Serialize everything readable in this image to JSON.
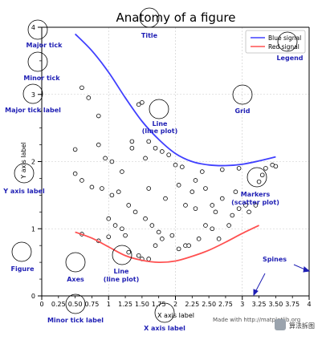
{
  "chart_data": {
    "type": "line",
    "title": "Anatomy of a figure",
    "xlabel": "X axis label",
    "ylabel": "Y axis label",
    "xlim": [
      0,
      4
    ],
    "ylim": [
      0,
      4
    ],
    "grid": true,
    "legend_position": "top-right",
    "x_major_ticks": [
      0,
      1,
      2,
      3,
      4
    ],
    "x_minor_ticks": [
      "0.25",
      "0.50",
      "0.75",
      "1.25",
      "1.50",
      "1.75",
      "2.25",
      "2.50",
      "2.75",
      "3.25",
      "3.50",
      "3.75"
    ],
    "y_major_ticks": [
      0,
      1,
      2,
      3,
      4
    ],
    "series": [
      {
        "name": "Blue signal",
        "color": "#4040ff",
        "x": [
          0.5,
          0.75,
          1.0,
          1.25,
          1.5,
          1.75,
          2.0,
          2.25,
          2.5,
          2.75,
          3.0,
          3.25,
          3.5
        ],
        "y": [
          3.9,
          3.65,
          3.33,
          2.95,
          2.6,
          2.33,
          2.12,
          2.0,
          1.95,
          1.94,
          1.96,
          2.01,
          2.07
        ]
      },
      {
        "name": "Red signal",
        "color": "#ff5050",
        "x": [
          0.5,
          0.75,
          1.0,
          1.25,
          1.5,
          1.75,
          2.0,
          2.25,
          2.5,
          2.75,
          3.0,
          3.25
        ],
        "y": [
          0.95,
          0.86,
          0.73,
          0.6,
          0.53,
          0.5,
          0.52,
          0.59,
          0.68,
          0.8,
          0.93,
          1.05
        ]
      }
    ],
    "scatter": {
      "label": "Markers (scatter plot)",
      "points": [
        [
          0.6,
          3.1
        ],
        [
          0.7,
          2.95
        ],
        [
          0.85,
          2.68
        ],
        [
          0.85,
          2.25
        ],
        [
          0.5,
          2.18
        ],
        [
          0.95,
          2.05
        ],
        [
          0.5,
          1.82
        ],
        [
          0.6,
          1.72
        ],
        [
          0.9,
          1.6
        ],
        [
          1.05,
          1.5
        ],
        [
          0.75,
          1.62
        ],
        [
          1.2,
          1.85
        ],
        [
          1.35,
          2.3
        ],
        [
          1.45,
          2.85
        ],
        [
          1.5,
          2.88
        ],
        [
          1.6,
          2.3
        ],
        [
          1.6,
          1.6
        ],
        [
          1.7,
          2.2
        ],
        [
          1.8,
          2.15
        ],
        [
          1.9,
          2.1
        ],
        [
          2.0,
          1.95
        ],
        [
          2.1,
          1.92
        ],
        [
          2.05,
          1.65
        ],
        [
          2.15,
          1.35
        ],
        [
          2.25,
          1.55
        ],
        [
          2.3,
          1.72
        ],
        [
          2.4,
          1.85
        ],
        [
          2.45,
          1.6
        ],
        [
          2.55,
          1.35
        ],
        [
          2.6,
          1.25
        ],
        [
          2.7,
          1.45
        ],
        [
          2.8,
          1.05
        ],
        [
          2.85,
          1.2
        ],
        [
          2.9,
          1.55
        ],
        [
          2.95,
          1.3
        ],
        [
          3.05,
          1.35
        ],
        [
          3.1,
          1.25
        ],
        [
          3.2,
          1.35
        ],
        [
          3.25,
          1.7
        ],
        [
          3.35,
          1.9
        ],
        [
          3.45,
          1.95
        ],
        [
          3.5,
          1.93
        ],
        [
          3.3,
          1.8
        ],
        [
          1.0,
          1.15
        ],
        [
          1.1,
          1.05
        ],
        [
          1.25,
          0.9
        ],
        [
          1.3,
          0.65
        ],
        [
          1.45,
          0.6
        ],
        [
          1.5,
          0.55
        ],
        [
          1.6,
          0.55
        ],
        [
          1.7,
          0.75
        ],
        [
          1.8,
          0.85
        ],
        [
          1.95,
          0.9
        ],
        [
          2.05,
          0.7
        ],
        [
          2.15,
          0.75
        ],
        [
          2.2,
          0.75
        ],
        [
          2.35,
          0.85
        ],
        [
          2.45,
          1.05
        ],
        [
          0.6,
          0.92
        ],
        [
          0.85,
          0.82
        ],
        [
          1.0,
          0.88
        ],
        [
          1.2,
          1.0
        ],
        [
          1.05,
          2.0
        ],
        [
          1.15,
          1.55
        ],
        [
          1.3,
          1.35
        ],
        [
          1.4,
          1.25
        ],
        [
          1.55,
          1.15
        ],
        [
          1.65,
          1.05
        ],
        [
          1.75,
          0.95
        ],
        [
          2.3,
          1.3
        ],
        [
          2.55,
          1.0
        ],
        [
          2.65,
          0.85
        ],
        [
          1.35,
          2.2
        ],
        [
          1.55,
          2.05
        ],
        [
          1.85,
          1.45
        ],
        [
          2.7,
          1.88
        ],
        [
          2.95,
          1.9
        ]
      ]
    }
  },
  "legend": {
    "blue": "Blue signal",
    "red": "Red signal"
  },
  "callouts": {
    "title": "Title",
    "major_tick": "Major tick",
    "minor_tick": "Minor tick",
    "major_tick_label": "Major tick label",
    "legend": "Legend",
    "grid": "Grid",
    "line_plot_1": "Line",
    "line_plot_1b": "(line plot)",
    "y_axis_label": "Y axis label",
    "markers_1": "Markers",
    "markers_2": "(scatter plot)",
    "figure": "Figure",
    "axes": "Axes",
    "line_plot_2": "Line",
    "line_plot_2b": "(line plot)",
    "spines": "Spines",
    "minor_tick_label": "Minor tick label",
    "x_axis_label": "X axis label"
  },
  "credit": "Made with http://matplotlib.org",
  "watermark": "算法拆图",
  "colors": {
    "callout": "#1f1fb4",
    "blue_line": "#4040ff",
    "red_line": "#ff5050"
  }
}
